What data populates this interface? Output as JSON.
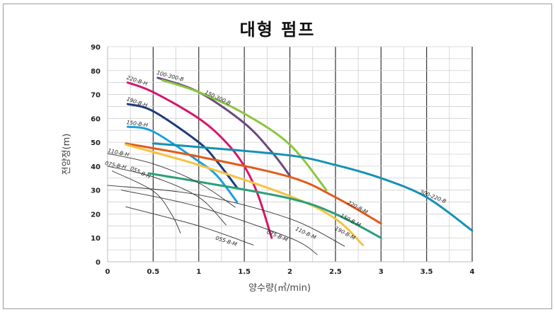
{
  "chart_data": {
    "type": "line",
    "title": "대형 펌프",
    "xlabel": "양수량(㎥/min)",
    "ylabel": "전양정(m)",
    "xlim": [
      0,
      4
    ],
    "ylim": [
      0,
      90
    ],
    "x_ticks": [
      "0",
      "0.5",
      "1",
      "1.5",
      "2",
      "2.5",
      "3",
      "3.5",
      "4"
    ],
    "y_ticks": [
      "0",
      "10",
      "20",
      "30",
      "40",
      "50",
      "60",
      "70",
      "80",
      "90"
    ],
    "grid": true,
    "series": [
      {
        "name": "100-300-B",
        "color": "#6b4a7e",
        "points": [
          [
            0.55,
            77
          ],
          [
            1,
            71
          ],
          [
            1.5,
            58
          ],
          [
            1.8,
            46
          ],
          [
            2.0,
            36
          ]
        ]
      },
      {
        "name": "150-300-B",
        "color": "#8cc63f",
        "points": [
          [
            0.6,
            76
          ],
          [
            1,
            71
          ],
          [
            1.5,
            62
          ],
          [
            2,
            49
          ],
          [
            2.4,
            30
          ]
        ]
      },
      {
        "name": "220-B-H",
        "color": "#d6156b",
        "points": [
          [
            0.22,
            75
          ],
          [
            0.5,
            71
          ],
          [
            1,
            60
          ],
          [
            1.3,
            50
          ],
          [
            1.5,
            40
          ],
          [
            1.65,
            28
          ],
          [
            1.8,
            10
          ]
        ]
      },
      {
        "name": "190-B-H",
        "color": "#1d3a7a",
        "points": [
          [
            0.22,
            66
          ],
          [
            0.5,
            63
          ],
          [
            1,
            50
          ],
          [
            1.2,
            42
          ],
          [
            1.42,
            31
          ]
        ]
      },
      {
        "name": "150-B-H",
        "color": "#1ca0dc",
        "points": [
          [
            0.22,
            56.5
          ],
          [
            0.5,
            54.5
          ],
          [
            1,
            42
          ],
          [
            1.2,
            36
          ],
          [
            1.42,
            25
          ]
        ]
      },
      {
        "name": "300-220-B",
        "color": "#1591b5",
        "points": [
          [
            0.5,
            49.5
          ],
          [
            1,
            48
          ],
          [
            2,
            44.5
          ],
          [
            2.5,
            40.5
          ],
          [
            3,
            35
          ],
          [
            3.5,
            27
          ],
          [
            4,
            13
          ]
        ]
      },
      {
        "name": "220-B-M",
        "color": "#e35a1a",
        "points": [
          [
            0.2,
            49.5
          ],
          [
            1,
            44
          ],
          [
            2,
            35.5
          ],
          [
            2.5,
            27
          ],
          [
            3,
            16
          ]
        ]
      },
      {
        "name": "190-B-M",
        "color": "#f6c243",
        "points": [
          [
            0.2,
            49
          ],
          [
            1,
            40.5
          ],
          [
            2,
            27.5
          ],
          [
            2.5,
            18
          ],
          [
            2.8,
            7
          ]
        ]
      },
      {
        "name": "150-B-M",
        "color": "#2aa07a",
        "points": [
          [
            0.45,
            37
          ],
          [
            1,
            33.5
          ],
          [
            2,
            26.5
          ],
          [
            2.5,
            20
          ],
          [
            3,
            10
          ]
        ]
      },
      {
        "name": "110-B-H",
        "color": "#333333",
        "points": [
          [
            0,
            45.3
          ],
          [
            0.5,
            41
          ],
          [
            1,
            33
          ],
          [
            1.4,
            22.8
          ]
        ]
      },
      {
        "name": "075-B-H",
        "color": "#333333",
        "points": [
          [
            0,
            40
          ],
          [
            0.5,
            35.5
          ],
          [
            1,
            27
          ],
          [
            1.3,
            15.4
          ]
        ]
      },
      {
        "name": "055-B-H",
        "color": "#333333",
        "points": [
          [
            0.05,
            38
          ],
          [
            0.5,
            29.6
          ],
          [
            0.7,
            20
          ],
          [
            0.8,
            12
          ]
        ]
      },
      {
        "name": "110-B-M",
        "color": "#333333",
        "points": [
          [
            0,
            32
          ],
          [
            1,
            28
          ],
          [
            2,
            18
          ],
          [
            2.6,
            6.5
          ]
        ]
      },
      {
        "name": "075-B-M",
        "color": "#333333",
        "points": [
          [
            0.15,
            30
          ],
          [
            1,
            23
          ],
          [
            2,
            10
          ],
          [
            2.3,
            3
          ]
        ]
      },
      {
        "name": "055-B-M",
        "color": "#333333",
        "points": [
          [
            0.2,
            23
          ],
          [
            1,
            15
          ],
          [
            1.6,
            7
          ]
        ]
      }
    ]
  }
}
